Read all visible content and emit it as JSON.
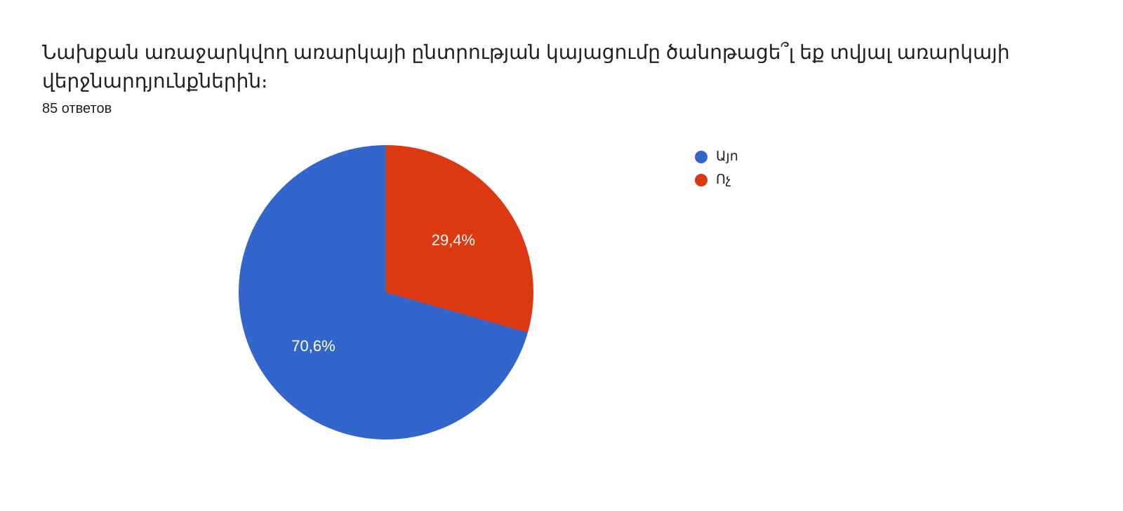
{
  "header": {
    "title": "Նախքան առաջարկվող առարկայի ընտրության կայացումը ծանոթացե՞լ եք տվյալ առարկայի վերջնարդյունքներին։",
    "subtitle": "85 ответов"
  },
  "chart": {
    "type": "pie",
    "background_color": "#ffffff",
    "slices": [
      {
        "label": "Այո",
        "value": 70.6,
        "display": "70,6%",
        "color": "#3366cc"
      },
      {
        "label": "Ոչ",
        "value": 29.4,
        "display": "29,4%",
        "color": "#dc3912"
      }
    ],
    "label_color": "#ffffff",
    "label_fontsize": 22,
    "legend_fontsize": 19,
    "legend_text_color": "#202124"
  }
}
